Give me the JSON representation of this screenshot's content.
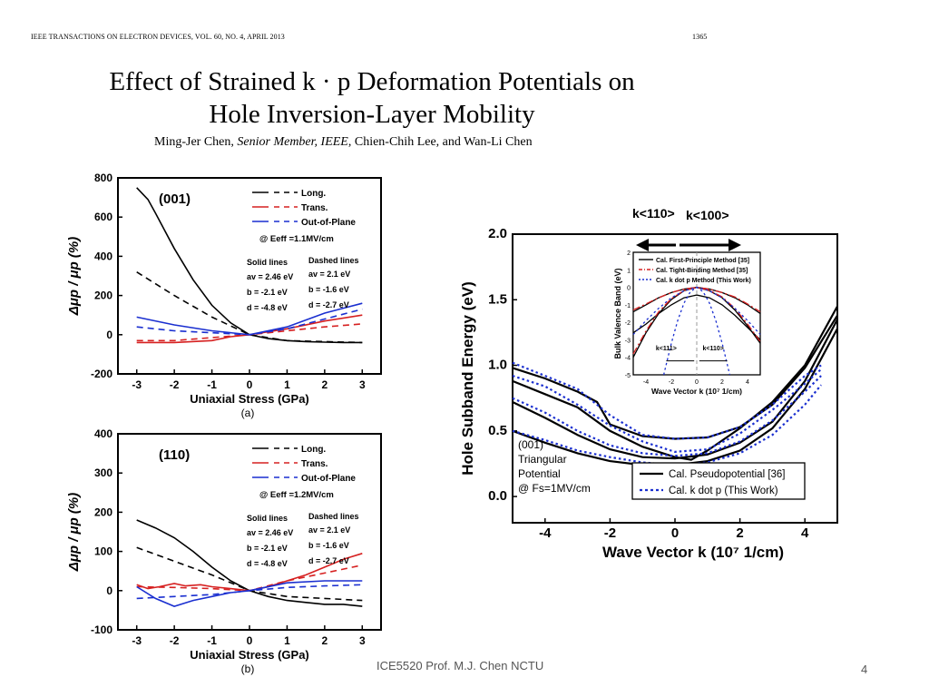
{
  "header": {
    "journal": "IEEE TRANSACTIONS ON ELECTRON DEVICES, VOL. 60, NO. 4, APRIL 2013",
    "page": "1365"
  },
  "paper": {
    "title_line1": "Effect of Strained k · p Deformation Potentials on",
    "title_line2": "Hole Inversion-Layer Mobility",
    "authors_plain1": "Ming-Jer Chen, ",
    "authors_italic": "Senior Member, IEEE",
    "authors_plain2": ", Chien-Chih Lee, and Wan-Li Chen"
  },
  "colors": {
    "long": "#000000",
    "trans": "#d62020",
    "oop": "#1a2fd0",
    "kdotp": "#1a2fd0"
  },
  "chart_data": [
    {
      "type": "line",
      "panel_label": "(001)",
      "caption": "(a)",
      "xlabel": "Uniaxial Stress (GPa)",
      "ylabel": "Δμp / μp (%)",
      "xlim": [
        -3.5,
        3.5
      ],
      "ylim": [
        -200,
        800
      ],
      "xticks": [
        -3,
        -2,
        -1,
        0,
        1,
        2,
        3
      ],
      "yticks": [
        -200,
        0,
        200,
        400,
        600,
        800
      ],
      "legend": [
        "Long.",
        "Trans.",
        "Out-of-Plane"
      ],
      "legend_note1": "@ Eeff =1.1MV/cm",
      "params": {
        "solid_title": "Solid lines",
        "dashed_title": "Dashed lines",
        "solid": [
          "av = 2.46 eV",
          "b = -2.1 eV",
          "d = -4.8 eV"
        ],
        "dashed": [
          "av = 2.1 eV",
          "b = -1.6 eV",
          "d = -2.7 eV"
        ]
      },
      "series": [
        {
          "name": "Long.",
          "style": "solid",
          "color": "#000000",
          "x": [
            -3,
            -2.7,
            -2.5,
            -2,
            -1.5,
            -1,
            -0.5,
            0,
            0.5,
            1,
            1.5,
            2,
            2.5,
            3
          ],
          "y": [
            750,
            690,
            620,
            440,
            280,
            150,
            60,
            0,
            -20,
            -30,
            -35,
            -38,
            -40,
            -40
          ]
        },
        {
          "name": "Long.",
          "style": "dashed",
          "color": "#000000",
          "x": [
            -3,
            -2,
            -1,
            0,
            1,
            2,
            3
          ],
          "y": [
            320,
            200,
            90,
            0,
            -30,
            -35,
            -40
          ]
        },
        {
          "name": "Trans.",
          "style": "solid",
          "color": "#d62020",
          "x": [
            -3,
            -2,
            -1,
            -0.5,
            0,
            1,
            2,
            3
          ],
          "y": [
            -40,
            -40,
            -30,
            -10,
            0,
            30,
            70,
            100
          ]
        },
        {
          "name": "Trans.",
          "style": "dashed",
          "color": "#d62020",
          "x": [
            -3,
            -2,
            -1,
            0,
            1,
            2,
            3
          ],
          "y": [
            -30,
            -30,
            -15,
            0,
            20,
            40,
            55
          ]
        },
        {
          "name": "Out-of-Plane",
          "style": "solid",
          "color": "#1a2fd0",
          "x": [
            -3,
            -2,
            -1,
            0,
            1,
            2,
            3
          ],
          "y": [
            90,
            50,
            20,
            0,
            40,
            110,
            160
          ]
        },
        {
          "name": "Out-of-Plane",
          "style": "dashed",
          "color": "#1a2fd0",
          "x": [
            -3,
            -2,
            -1,
            0,
            1,
            2,
            3
          ],
          "y": [
            40,
            20,
            10,
            0,
            30,
            80,
            130
          ]
        }
      ]
    },
    {
      "type": "line",
      "panel_label": "(110)",
      "caption": "(b)",
      "xlabel": "Uniaxial Stress (GPa)",
      "ylabel": "Δμp / μp (%)",
      "xlim": [
        -3.5,
        3.5
      ],
      "ylim": [
        -100,
        400
      ],
      "xticks": [
        -3,
        -2,
        -1,
        0,
        1,
        2,
        3
      ],
      "yticks": [
        -100,
        0,
        100,
        200,
        300,
        400
      ],
      "legend": [
        "Long.",
        "Trans.",
        "Out-of-Plane"
      ],
      "legend_note1": "@ Eeff =1.2MV/cm",
      "params": {
        "solid_title": "Solid lines",
        "dashed_title": "Dashed lines",
        "solid": [
          "av = 2.46 eV",
          "b = -2.1 eV",
          "d = -4.8 eV"
        ],
        "dashed": [
          "av = 2.1 eV",
          "b = -1.6 eV",
          "d = -2.7 eV"
        ]
      },
      "series": [
        {
          "name": "Long.",
          "style": "solid",
          "color": "#000000",
          "x": [
            -3,
            -2.5,
            -2,
            -1.5,
            -1,
            -0.5,
            0,
            0.5,
            1,
            1.5,
            2,
            2.5,
            3
          ],
          "y": [
            180,
            160,
            135,
            100,
            60,
            25,
            0,
            -15,
            -25,
            -30,
            -35,
            -35,
            -40
          ]
        },
        {
          "name": "Long.",
          "style": "dashed",
          "color": "#000000",
          "x": [
            -3,
            -2,
            -1,
            0,
            1,
            2,
            3
          ],
          "y": [
            110,
            75,
            40,
            0,
            -15,
            -20,
            -25
          ]
        },
        {
          "name": "Trans.",
          "style": "solid",
          "color": "#d62020",
          "x": [
            -3,
            -2.7,
            -2.4,
            -2,
            -1.7,
            -1.3,
            -1,
            -0.5,
            0,
            0.5,
            1,
            1.5,
            2,
            2.5,
            3
          ],
          "y": [
            15,
            5,
            10,
            18,
            12,
            15,
            10,
            5,
            0,
            10,
            25,
            40,
            60,
            80,
            95
          ]
        },
        {
          "name": "Trans.",
          "style": "dashed",
          "color": "#d62020",
          "x": [
            -3,
            -2,
            -1,
            0,
            1,
            2,
            3
          ],
          "y": [
            10,
            8,
            5,
            0,
            25,
            45,
            65
          ]
        },
        {
          "name": "Out-of-Plane",
          "style": "solid",
          "color": "#1a2fd0",
          "x": [
            -3,
            -2.5,
            -2,
            -1.5,
            -1,
            -0.5,
            0,
            1,
            2,
            3
          ],
          "y": [
            10,
            -20,
            -40,
            -25,
            -15,
            -5,
            0,
            20,
            25,
            25
          ]
        },
        {
          "name": "Out-of-Plane",
          "style": "dashed",
          "color": "#1a2fd0",
          "x": [
            -3,
            -2,
            -1,
            0,
            1,
            2,
            3
          ],
          "y": [
            -20,
            -15,
            -10,
            0,
            8,
            12,
            15
          ]
        }
      ]
    },
    {
      "type": "line",
      "xlabel": "Wave Vector k (10⁷ 1/cm)",
      "ylabel": "Hole Subband Energy (eV)",
      "xlim": [
        -5,
        5
      ],
      "ylim": [
        -0.2,
        2.0
      ],
      "xticks": [
        -4,
        -2,
        0,
        2,
        4
      ],
      "yticks": [
        0.0,
        0.5,
        1.0,
        1.5,
        2.0
      ],
      "ytick_labels": [
        "0.0",
        "0.5",
        "1.0",
        "1.5",
        "2.0"
      ],
      "top_label_left": "k<110>",
      "top_label_right": "k<100>",
      "annotation": [
        "(001)",
        "Triangular",
        "Potential",
        "@ Fs=1MV/cm"
      ],
      "legend": [
        "Cal. Pseudopotential [36]",
        "Cal. k dot p (This Work)"
      ],
      "series": [
        {
          "name": "Cal. Pseudopotential [36]",
          "style": "solid",
          "color": "#000000",
          "x": [
            -5,
            -4,
            -3,
            -2,
            -1,
            0,
            1,
            2,
            3,
            4,
            5
          ],
          "y": [
            0.5,
            0.41,
            0.33,
            0.27,
            0.24,
            0.24,
            0.27,
            0.35,
            0.52,
            0.82,
            1.28
          ]
        },
        {
          "name": "Cal. Pseudopotential [36]",
          "style": "solid",
          "color": "#000000",
          "x": [
            -5,
            -4,
            -3,
            -2,
            -1,
            0,
            1,
            2,
            3,
            4,
            5
          ],
          "y": [
            0.72,
            0.6,
            0.47,
            0.36,
            0.3,
            0.29,
            0.32,
            0.41,
            0.57,
            0.88,
            1.35
          ]
        },
        {
          "name": "Cal. Pseudopotential [36]",
          "style": "solid",
          "color": "#000000",
          "x": [
            -5,
            -4,
            -3,
            -2,
            -1,
            0,
            0.5,
            1,
            2,
            3,
            4,
            5
          ],
          "y": [
            0.88,
            0.78,
            0.68,
            0.5,
            0.38,
            0.3,
            0.28,
            0.35,
            0.52,
            0.72,
            1.0,
            1.45
          ]
        },
        {
          "name": "Cal. Pseudopotential [36]",
          "style": "solid",
          "color": "#000000",
          "x": [
            -5,
            -4,
            -3,
            -2.4,
            -2,
            -1,
            0,
            1,
            2,
            3,
            4,
            5
          ],
          "y": [
            0.98,
            0.9,
            0.8,
            0.72,
            0.55,
            0.46,
            0.44,
            0.45,
            0.53,
            0.7,
            0.98,
            1.38
          ]
        },
        {
          "name": "Cal. k dot p (This Work)",
          "style": "dotted",
          "color": "#1a2fd0",
          "x": [
            -5,
            -4,
            -3,
            -2,
            -1,
            0,
            1,
            2,
            3,
            4,
            4.5
          ],
          "y": [
            0.5,
            0.43,
            0.35,
            0.3,
            0.26,
            0.24,
            0.26,
            0.33,
            0.47,
            0.7,
            0.85
          ]
        },
        {
          "name": "Cal. k dot p (This Work)",
          "style": "dotted",
          "color": "#1a2fd0",
          "x": [
            -5,
            -4,
            -3,
            -2,
            -1,
            0,
            1,
            2,
            3,
            4,
            4.5
          ],
          "y": [
            0.75,
            0.64,
            0.5,
            0.39,
            0.33,
            0.31,
            0.33,
            0.42,
            0.58,
            0.8,
            0.92
          ]
        },
        {
          "name": "Cal. k dot p (This Work)",
          "style": "dotted",
          "color": "#1a2fd0",
          "x": [
            -5,
            -4,
            -3,
            -2,
            -1,
            0,
            1,
            2,
            3,
            4,
            4.5
          ],
          "y": [
            0.92,
            0.84,
            0.7,
            0.54,
            0.42,
            0.34,
            0.36,
            0.48,
            0.66,
            0.86,
            0.97
          ]
        },
        {
          "name": "Cal. k dot p (This Work)",
          "style": "dotted",
          "color": "#1a2fd0",
          "x": [
            -5,
            -4,
            -3,
            -2,
            -1,
            0,
            1,
            2,
            3,
            4,
            4.5
          ],
          "y": [
            1.02,
            0.92,
            0.82,
            0.62,
            0.47,
            0.44,
            0.45,
            0.53,
            0.7,
            0.92,
            1.0
          ]
        }
      ]
    },
    {
      "type": "line",
      "xlabel": "Wave Vector k (10⁷ 1/cm)",
      "ylabel": "Bulk Valence Band (eV)",
      "xlim": [
        -5,
        5
      ],
      "ylim": [
        -5,
        2
      ],
      "xticks": [
        -4,
        -2,
        0,
        2,
        4
      ],
      "yticks": [
        -5,
        -4,
        -3,
        -2,
        -1,
        0,
        1,
        2
      ],
      "legend": [
        "Cal. First-Principle Method [35]",
        "Cal. Tight-Binding Method [35]",
        "Cal. k dot p Method (This Work)"
      ],
      "axis_label_left": "k<111>",
      "axis_label_right": "k<110>",
      "series": [
        {
          "name": "Cal. First-Principle Method [35]",
          "style": "solid",
          "color": "#000000",
          "x": [
            -5,
            -4,
            -3,
            -2,
            -1,
            0,
            1,
            2,
            3,
            4,
            5
          ],
          "y": [
            -4.0,
            -2.6,
            -1.5,
            -0.7,
            -0.2,
            0,
            -0.2,
            -0.6,
            -1.3,
            -2.2,
            -3.2
          ]
        },
        {
          "name": "Cal. First-Principle Method [35]",
          "style": "solid",
          "color": "#000000",
          "x": [
            -5,
            -4,
            -3,
            -2,
            -1,
            0,
            1,
            2,
            3,
            4,
            5
          ],
          "y": [
            -1.4,
            -1.0,
            -0.6,
            -0.3,
            -0.1,
            0,
            -0.1,
            -0.3,
            -0.6,
            -1.0,
            -1.5
          ]
        },
        {
          "name": "Cal. First-Principle Method [35]",
          "style": "solid",
          "color": "#000000",
          "x": [
            -5,
            -4,
            -3,
            -2,
            -1,
            0,
            1,
            2,
            3,
            4,
            5
          ],
          "y": [
            -2.6,
            -2.1,
            -1.5,
            -1.0,
            -0.6,
            -0.44,
            -0.6,
            -1.0,
            -1.6,
            -2.3,
            -3.0
          ]
        },
        {
          "name": "Cal. Tight-Binding Method [35]",
          "style": "dashdot",
          "color": "#d62020",
          "x": [
            -5,
            -4,
            -3,
            -2,
            -1,
            0,
            1,
            2,
            3,
            4,
            5
          ],
          "y": [
            -3.8,
            -2.5,
            -1.4,
            -0.65,
            -0.18,
            0,
            -0.18,
            -0.55,
            -1.2,
            -2.1,
            -3.1
          ]
        },
        {
          "name": "Cal. Tight-Binding Method [35]",
          "style": "dashdot",
          "color": "#d62020",
          "x": [
            -5,
            -4,
            -3,
            -2,
            -1,
            0,
            1,
            2,
            3,
            4,
            5
          ],
          "y": [
            -1.3,
            -0.95,
            -0.6,
            -0.3,
            -0.1,
            0,
            -0.1,
            -0.3,
            -0.55,
            -0.95,
            -1.4
          ]
        },
        {
          "name": "Cal. k dot p Method (This Work)",
          "style": "dotted",
          "color": "#1a2fd0",
          "x": [
            -2.6,
            -2,
            -1.5,
            -1,
            -0.5,
            0,
            0.5,
            1,
            1.5,
            2,
            2.6
          ],
          "y": [
            -5,
            -3.2,
            -1.9,
            -0.9,
            -0.25,
            0,
            -0.25,
            -0.9,
            -1.9,
            -3.2,
            -5
          ]
        },
        {
          "name": "Cal. k dot p Method (This Work)",
          "style": "dotted",
          "color": "#1a2fd0",
          "x": [
            -5,
            -4,
            -3,
            -2,
            -1,
            0,
            1,
            2,
            3,
            4,
            5
          ],
          "y": [
            -2.7,
            -1.9,
            -1.2,
            -0.6,
            -0.2,
            0,
            -0.2,
            -0.6,
            -1.2,
            -1.9,
            -2.7
          ]
        }
      ]
    }
  ],
  "footer": {
    "text": "ICE5520 Prof. M.J. Chen NCTU",
    "page": "4"
  }
}
